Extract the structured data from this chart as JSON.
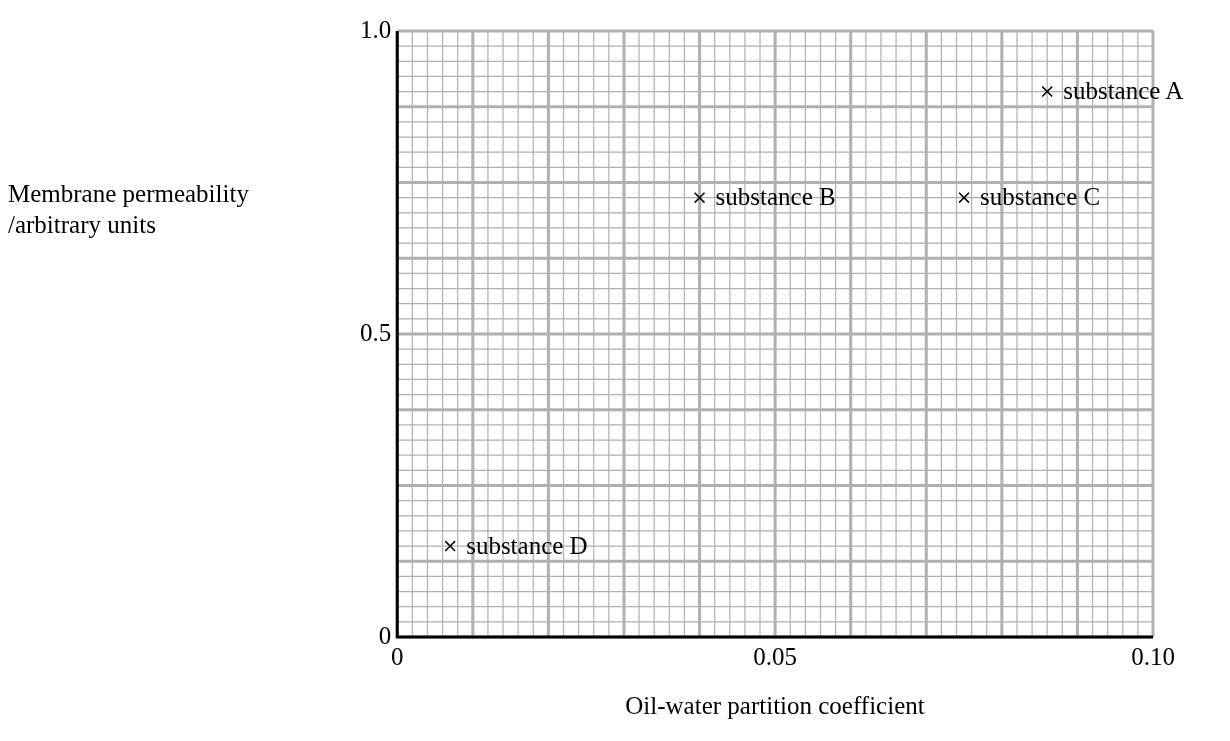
{
  "chart_data": {
    "type": "scatter",
    "xlabel": "Oil-water partition coefficient",
    "ylabel": "Membrane permeability\n/arbitrary units",
    "x": [
      0.086,
      0.04,
      0.075,
      0.007
    ],
    "values": [
      0.9,
      0.725,
      0.725,
      0.15
    ],
    "color": "#000000",
    "marker": "cross",
    "xlim": [
      0,
      0.1
    ],
    "ylim": [
      0,
      1
    ],
    "xticks": [
      0,
      {
        "value": 0.01,
        "label": null
      },
      {
        "value": 0.02,
        "label": null
      },
      {
        "value": 0.03,
        "label": null
      },
      {
        "value": 0.04,
        "label": null
      },
      0.05,
      {
        "value": 0.06,
        "label": null
      },
      {
        "value": 0.07,
        "label": null
      },
      {
        "value": 0.08,
        "label": null
      },
      {
        "value": 0.09,
        "label": null
      },
      {
        "value": 0.1,
        "label": "0.10"
      }
    ],
    "yticks": [
      0,
      {
        "value": 0.125,
        "label": null
      },
      {
        "value": 0.25,
        "label": null
      },
      {
        "value": 0.375,
        "label": null
      },
      0.5,
      {
        "value": 0.625,
        "label": null
      },
      {
        "value": 0.75,
        "label": null
      },
      {
        "value": 0.875,
        "label": null
      },
      {
        "value": 1,
        "label": "1.0"
      }
    ],
    "grid": true,
    "annotations": [
      {
        "text": "substance A",
        "x": 0.086,
        "y": 0.9
      },
      {
        "text": "substance B",
        "x": 0.04,
        "y": 0.725
      },
      {
        "text": "substance C",
        "x": 0.075,
        "y": 0.725
      },
      {
        "text": "substance D",
        "x": 0.007,
        "y": 0.15
      }
    ]
  }
}
